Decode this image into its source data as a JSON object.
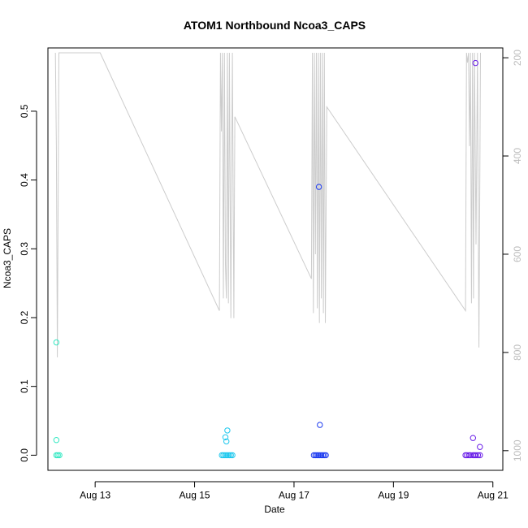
{
  "chart_data": {
    "type": "scatter",
    "title": "ATOM1 Northbound Ncoa3_CAPS",
    "xlabel": "Date",
    "ylabel": "Ncoa3_CAPS",
    "x_tick_labels": [
      "Aug 13",
      "Aug 15",
      "Aug 17",
      "Aug 19",
      "Aug 21"
    ],
    "x_tick_values": [
      13,
      15,
      17,
      19,
      21
    ],
    "xlim": [
      12.05,
      21.2
    ],
    "ylim": [
      -0.022,
      0.592
    ],
    "y_ticks": [
      0.0,
      0.1,
      0.2,
      0.3,
      0.4,
      0.5
    ],
    "y_tick_labels": [
      "0.0",
      "0.1",
      "0.2",
      "0.3",
      "0.4",
      "0.5"
    ],
    "secondary_axis": {
      "label_color": "#bdbdbd",
      "line_color": "#cccccc",
      "reversed": true,
      "ylim": [
        1040,
        180
      ],
      "ticks": [
        200,
        400,
        600,
        800,
        1000
      ],
      "tick_labels": [
        "200",
        "400",
        "600",
        "800",
        "1000"
      ],
      "series": [
        [
          12.2,
          190
        ],
        [
          12.22,
          380
        ],
        [
          12.24,
          810
        ],
        [
          12.27,
          190
        ],
        [
          12.3,
          190
        ],
        [
          13.1,
          190
        ],
        [
          15.5,
          715
        ],
        [
          15.52,
          190
        ],
        [
          15.54,
          350
        ],
        [
          15.56,
          190
        ],
        [
          15.58,
          690
        ],
        [
          15.6,
          190
        ],
        [
          15.62,
          620
        ],
        [
          15.64,
          690
        ],
        [
          15.66,
          190
        ],
        [
          15.68,
          700
        ],
        [
          15.7,
          190
        ],
        [
          15.73,
          730
        ],
        [
          15.76,
          190
        ],
        [
          15.79,
          730
        ],
        [
          15.81,
          320
        ],
        [
          17.35,
          650
        ],
        [
          17.37,
          190
        ],
        [
          17.39,
          720
        ],
        [
          17.41,
          190
        ],
        [
          17.43,
          600
        ],
        [
          17.45,
          190
        ],
        [
          17.47,
          710
        ],
        [
          17.49,
          190
        ],
        [
          17.51,
          740
        ],
        [
          17.53,
          190
        ],
        [
          17.55,
          690
        ],
        [
          17.57,
          190
        ],
        [
          17.59,
          720
        ],
        [
          17.61,
          190
        ],
        [
          17.63,
          740
        ],
        [
          17.66,
          300
        ],
        [
          20.45,
          715
        ],
        [
          20.47,
          190
        ],
        [
          20.49,
          210
        ],
        [
          20.51,
          190
        ],
        [
          20.53,
          380
        ],
        [
          20.55,
          190
        ],
        [
          20.57,
          700
        ],
        [
          20.59,
          190
        ],
        [
          20.61,
          690
        ],
        [
          20.63,
          190
        ],
        [
          20.66,
          580
        ],
        [
          20.69,
          190
        ],
        [
          20.72,
          790
        ],
        [
          20.75,
          190
        ]
      ]
    },
    "series": [
      {
        "color": "#33e8c2",
        "points": [
          [
            12.22,
            0.164
          ],
          [
            12.22,
            0.022
          ],
          [
            12.22,
            0.0
          ],
          [
            12.25,
            0.0
          ],
          [
            12.28,
            0.0
          ]
        ]
      },
      {
        "color": "#1ec8ee",
        "points": [
          [
            15.55,
            0.0
          ],
          [
            15.58,
            0.0
          ],
          [
            15.61,
            0.0
          ],
          [
            15.64,
            0.0
          ],
          [
            15.67,
            0.0
          ],
          [
            15.7,
            0.0
          ],
          [
            15.73,
            0.0
          ],
          [
            15.76,
            0.0
          ],
          [
            15.62,
            0.026
          ],
          [
            15.64,
            0.02
          ],
          [
            15.66,
            0.036
          ]
        ]
      },
      {
        "color": "#1e3cf0",
        "points": [
          [
            17.4,
            0.0
          ],
          [
            17.43,
            0.0
          ],
          [
            17.46,
            0.0
          ],
          [
            17.49,
            0.0
          ],
          [
            17.52,
            0.0
          ],
          [
            17.55,
            0.0
          ],
          [
            17.58,
            0.0
          ],
          [
            17.61,
            0.0
          ],
          [
            17.64,
            0.0
          ],
          [
            17.5,
            0.39
          ],
          [
            17.52,
            0.044
          ]
        ]
      },
      {
        "color": "#6a1ee8",
        "points": [
          [
            20.45,
            0.0
          ],
          [
            20.48,
            0.0
          ],
          [
            20.52,
            0.0
          ],
          [
            20.55,
            0.0
          ],
          [
            20.6,
            0.0
          ],
          [
            20.63,
            0.0
          ],
          [
            20.66,
            0.0
          ],
          [
            20.7,
            0.0
          ],
          [
            20.74,
            0.0
          ],
          [
            20.6,
            0.025
          ],
          [
            20.74,
            0.012
          ],
          [
            20.65,
            0.57
          ]
        ]
      }
    ],
    "grid": false,
    "legend": "none"
  }
}
